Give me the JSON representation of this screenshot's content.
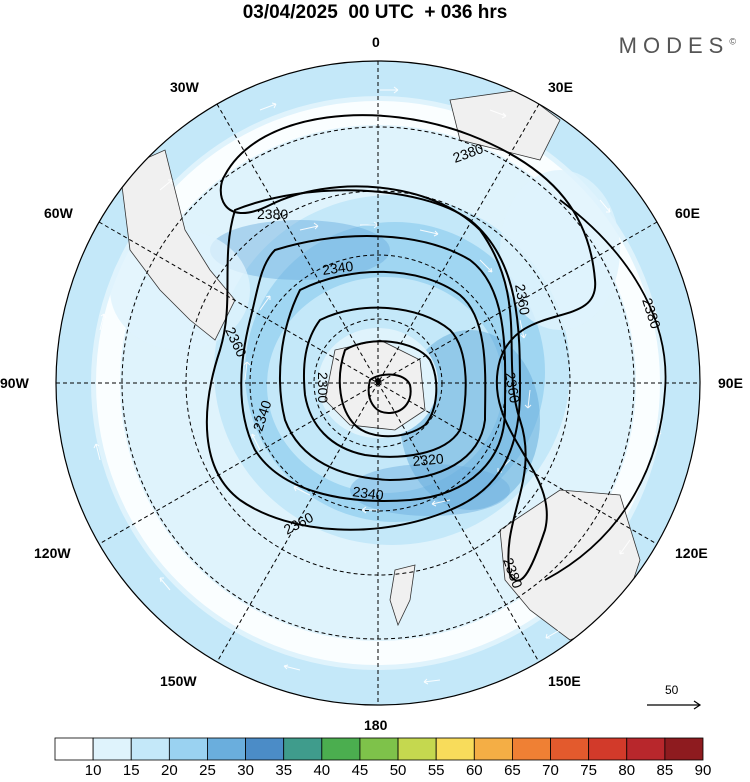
{
  "header": {
    "title": "03/04/2025  00 UTC  + 036 hrs",
    "brand": "MODES"
  },
  "longitude_labels": {
    "lon_0": "0",
    "lon_30e": "30E",
    "lon_60e": "60E",
    "lon_90e": "90E",
    "lon_120e": "120E",
    "lon_150e": "150E",
    "lon_180": "180",
    "lon_150w": "150W",
    "lon_120w": "120W",
    "lon_90w": "90W",
    "lon_60w": "60W",
    "lon_30w": "30W"
  },
  "contour_labels": [
    "2380",
    "2380",
    "2340",
    "2360",
    "2380",
    "2360",
    "2300",
    "2360",
    "2340",
    "2320",
    "2340",
    "2360",
    "2380"
  ],
  "wind_reference": {
    "value": "50"
  },
  "colorbar": {
    "levels": [
      "10",
      "15",
      "20",
      "25",
      "30",
      "35",
      "40",
      "45",
      "50",
      "55",
      "60",
      "65",
      "70",
      "75",
      "80",
      "85",
      "90"
    ],
    "colors": [
      "#ffffff",
      "#dff3fc",
      "#c4e8f9",
      "#9ad2f1",
      "#6aaedd",
      "#4b8cc7",
      "#3f9c8c",
      "#4bae4f",
      "#7ec24a",
      "#c5d84f",
      "#f8dc5b",
      "#f4ae45",
      "#ef8034",
      "#e35a2d",
      "#d23a2a",
      "#b8272c",
      "#8e1b1f"
    ]
  },
  "colors": {
    "ocean_light": "#dff3fc",
    "band_mid": "#c4e8f9",
    "band_strong": "#9ad2f1",
    "core": "#6aaedd",
    "land": "#f0f0f0"
  }
}
